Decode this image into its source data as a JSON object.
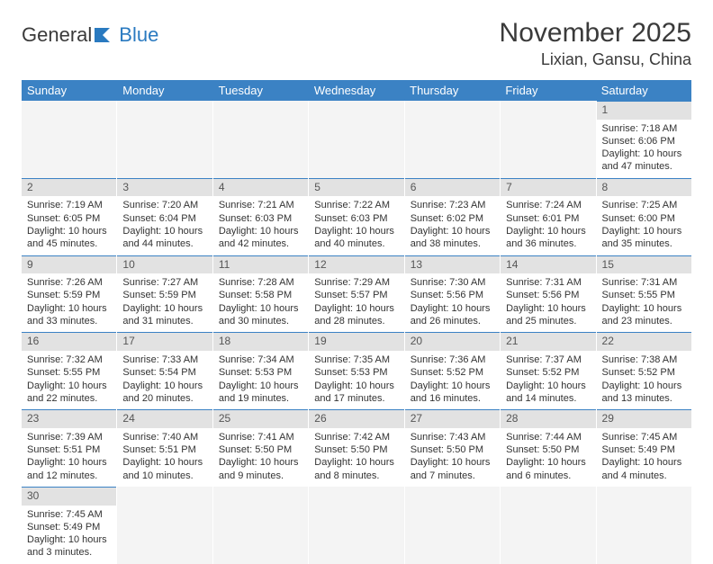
{
  "brand": {
    "part1": "General",
    "part2": "Blue"
  },
  "title": "November 2025",
  "location": "Lixian, Gansu, China",
  "dows": [
    "Sunday",
    "Monday",
    "Tuesday",
    "Wednesday",
    "Thursday",
    "Friday",
    "Saturday"
  ],
  "colors": {
    "header_bg": "#3b82c4",
    "header_text": "#ffffff",
    "daynum_bg": "#e2e2e2",
    "daynum_border": "#3b82c4",
    "text": "#333333",
    "empty_bg": "#f4f4f4"
  },
  "type": "table",
  "grid": [
    [
      {
        "n": "",
        "sr": "",
        "ss": "",
        "dl": ""
      },
      {
        "n": "",
        "sr": "",
        "ss": "",
        "dl": ""
      },
      {
        "n": "",
        "sr": "",
        "ss": "",
        "dl": ""
      },
      {
        "n": "",
        "sr": "",
        "ss": "",
        "dl": ""
      },
      {
        "n": "",
        "sr": "",
        "ss": "",
        "dl": ""
      },
      {
        "n": "",
        "sr": "",
        "ss": "",
        "dl": ""
      },
      {
        "n": "1",
        "sr": "Sunrise: 7:18 AM",
        "ss": "Sunset: 6:06 PM",
        "dl": "Daylight: 10 hours and 47 minutes."
      }
    ],
    [
      {
        "n": "2",
        "sr": "Sunrise: 7:19 AM",
        "ss": "Sunset: 6:05 PM",
        "dl": "Daylight: 10 hours and 45 minutes."
      },
      {
        "n": "3",
        "sr": "Sunrise: 7:20 AM",
        "ss": "Sunset: 6:04 PM",
        "dl": "Daylight: 10 hours and 44 minutes."
      },
      {
        "n": "4",
        "sr": "Sunrise: 7:21 AM",
        "ss": "Sunset: 6:03 PM",
        "dl": "Daylight: 10 hours and 42 minutes."
      },
      {
        "n": "5",
        "sr": "Sunrise: 7:22 AM",
        "ss": "Sunset: 6:03 PM",
        "dl": "Daylight: 10 hours and 40 minutes."
      },
      {
        "n": "6",
        "sr": "Sunrise: 7:23 AM",
        "ss": "Sunset: 6:02 PM",
        "dl": "Daylight: 10 hours and 38 minutes."
      },
      {
        "n": "7",
        "sr": "Sunrise: 7:24 AM",
        "ss": "Sunset: 6:01 PM",
        "dl": "Daylight: 10 hours and 36 minutes."
      },
      {
        "n": "8",
        "sr": "Sunrise: 7:25 AM",
        "ss": "Sunset: 6:00 PM",
        "dl": "Daylight: 10 hours and 35 minutes."
      }
    ],
    [
      {
        "n": "9",
        "sr": "Sunrise: 7:26 AM",
        "ss": "Sunset: 5:59 PM",
        "dl": "Daylight: 10 hours and 33 minutes."
      },
      {
        "n": "10",
        "sr": "Sunrise: 7:27 AM",
        "ss": "Sunset: 5:59 PM",
        "dl": "Daylight: 10 hours and 31 minutes."
      },
      {
        "n": "11",
        "sr": "Sunrise: 7:28 AM",
        "ss": "Sunset: 5:58 PM",
        "dl": "Daylight: 10 hours and 30 minutes."
      },
      {
        "n": "12",
        "sr": "Sunrise: 7:29 AM",
        "ss": "Sunset: 5:57 PM",
        "dl": "Daylight: 10 hours and 28 minutes."
      },
      {
        "n": "13",
        "sr": "Sunrise: 7:30 AM",
        "ss": "Sunset: 5:56 PM",
        "dl": "Daylight: 10 hours and 26 minutes."
      },
      {
        "n": "14",
        "sr": "Sunrise: 7:31 AM",
        "ss": "Sunset: 5:56 PM",
        "dl": "Daylight: 10 hours and 25 minutes."
      },
      {
        "n": "15",
        "sr": "Sunrise: 7:31 AM",
        "ss": "Sunset: 5:55 PM",
        "dl": "Daylight: 10 hours and 23 minutes."
      }
    ],
    [
      {
        "n": "16",
        "sr": "Sunrise: 7:32 AM",
        "ss": "Sunset: 5:55 PM",
        "dl": "Daylight: 10 hours and 22 minutes."
      },
      {
        "n": "17",
        "sr": "Sunrise: 7:33 AM",
        "ss": "Sunset: 5:54 PM",
        "dl": "Daylight: 10 hours and 20 minutes."
      },
      {
        "n": "18",
        "sr": "Sunrise: 7:34 AM",
        "ss": "Sunset: 5:53 PM",
        "dl": "Daylight: 10 hours and 19 minutes."
      },
      {
        "n": "19",
        "sr": "Sunrise: 7:35 AM",
        "ss": "Sunset: 5:53 PM",
        "dl": "Daylight: 10 hours and 17 minutes."
      },
      {
        "n": "20",
        "sr": "Sunrise: 7:36 AM",
        "ss": "Sunset: 5:52 PM",
        "dl": "Daylight: 10 hours and 16 minutes."
      },
      {
        "n": "21",
        "sr": "Sunrise: 7:37 AM",
        "ss": "Sunset: 5:52 PM",
        "dl": "Daylight: 10 hours and 14 minutes."
      },
      {
        "n": "22",
        "sr": "Sunrise: 7:38 AM",
        "ss": "Sunset: 5:52 PM",
        "dl": "Daylight: 10 hours and 13 minutes."
      }
    ],
    [
      {
        "n": "23",
        "sr": "Sunrise: 7:39 AM",
        "ss": "Sunset: 5:51 PM",
        "dl": "Daylight: 10 hours and 12 minutes."
      },
      {
        "n": "24",
        "sr": "Sunrise: 7:40 AM",
        "ss": "Sunset: 5:51 PM",
        "dl": "Daylight: 10 hours and 10 minutes."
      },
      {
        "n": "25",
        "sr": "Sunrise: 7:41 AM",
        "ss": "Sunset: 5:50 PM",
        "dl": "Daylight: 10 hours and 9 minutes."
      },
      {
        "n": "26",
        "sr": "Sunrise: 7:42 AM",
        "ss": "Sunset: 5:50 PM",
        "dl": "Daylight: 10 hours and 8 minutes."
      },
      {
        "n": "27",
        "sr": "Sunrise: 7:43 AM",
        "ss": "Sunset: 5:50 PM",
        "dl": "Daylight: 10 hours and 7 minutes."
      },
      {
        "n": "28",
        "sr": "Sunrise: 7:44 AM",
        "ss": "Sunset: 5:50 PM",
        "dl": "Daylight: 10 hours and 6 minutes."
      },
      {
        "n": "29",
        "sr": "Sunrise: 7:45 AM",
        "ss": "Sunset: 5:49 PM",
        "dl": "Daylight: 10 hours and 4 minutes."
      }
    ],
    [
      {
        "n": "30",
        "sr": "Sunrise: 7:45 AM",
        "ss": "Sunset: 5:49 PM",
        "dl": "Daylight: 10 hours and 3 minutes."
      },
      {
        "n": "",
        "sr": "",
        "ss": "",
        "dl": ""
      },
      {
        "n": "",
        "sr": "",
        "ss": "",
        "dl": ""
      },
      {
        "n": "",
        "sr": "",
        "ss": "",
        "dl": ""
      },
      {
        "n": "",
        "sr": "",
        "ss": "",
        "dl": ""
      },
      {
        "n": "",
        "sr": "",
        "ss": "",
        "dl": ""
      },
      {
        "n": "",
        "sr": "",
        "ss": "",
        "dl": ""
      }
    ]
  ]
}
